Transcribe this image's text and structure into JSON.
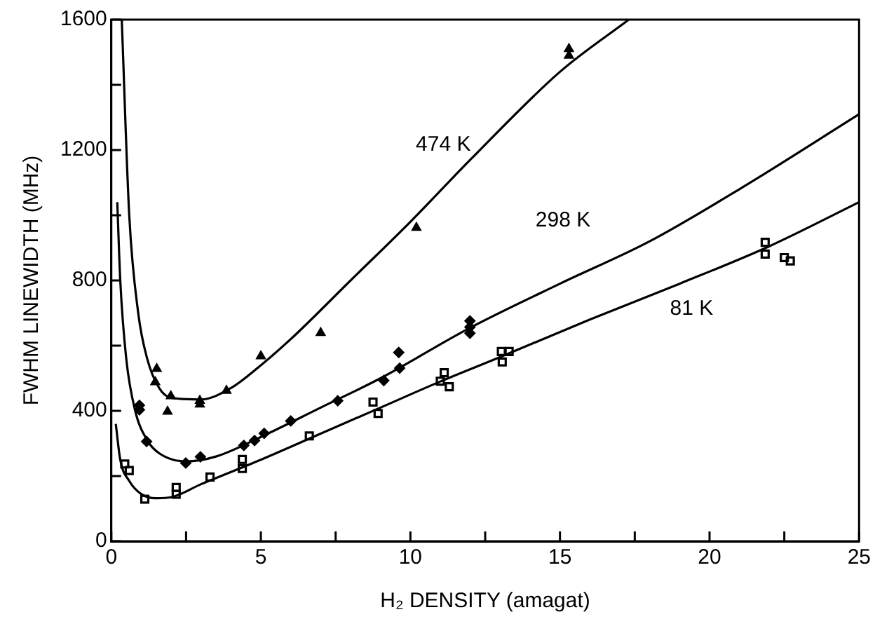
{
  "chart_data": {
    "type": "scatter",
    "xlabel": "H₂ DENSITY (amagat)",
    "ylabel": "FWHM LINEWIDTH (MHz)",
    "xlim": [
      0,
      25
    ],
    "xticks": [
      0,
      {
        "value": 2.5,
        "label": null
      },
      5,
      {
        "value": 7.5,
        "label": null
      },
      10,
      {
        "value": 12.5,
        "label": null
      },
      15,
      {
        "value": 17.5,
        "label": null
      },
      20,
      {
        "value": 22.5,
        "label": null
      },
      25
    ],
    "ylim": [
      0,
      1600
    ],
    "yticks": [
      0,
      {
        "value": 200,
        "label": null
      },
      400,
      {
        "value": 600,
        "label": null
      },
      800,
      {
        "value": 1000,
        "label": null
      },
      1200,
      {
        "value": 1400,
        "label": null
      },
      1600
    ],
    "grid": false,
    "legend": false,
    "series": [
      {
        "marker": "triangle",
        "color": "#000000",
        "x": [
          1.52,
          1.47,
          1.99,
          1.88,
          2.96,
          2.96,
          3.85,
          5.0,
          7.0,
          10.2,
          15.3,
          15.3
        ],
        "values": [
          529,
          488,
          445,
          398,
          431,
          420,
          462,
          568,
          639,
          962,
          1510,
          1490
        ]
      },
      {
        "marker": "diamond",
        "color": "#000000",
        "x": [
          0.94,
          0.94,
          1.18,
          2.49,
          2.98,
          4.43,
          4.79,
          5.11,
          6.0,
          7.57,
          9.11,
          9.61,
          9.64,
          11.99,
          11.99,
          11.99
        ],
        "values": [
          417,
          403,
          306,
          240,
          259,
          294,
          309,
          331,
          369,
          431,
          493,
          579,
          531,
          657,
          638,
          676
        ]
      },
      {
        "marker": "square",
        "color": "#000000",
        "x": [
          0.45,
          0.6,
          1.12,
          2.17,
          2.17,
          3.3,
          4.38,
          4.38,
          6.62,
          8.75,
          8.92,
          11.13,
          11.0,
          11.3,
          13.04,
          13.3,
          13.07,
          21.86,
          21.86,
          22.5,
          22.7
        ],
        "values": [
          237,
          217,
          129,
          165,
          144,
          197,
          251,
          223,
          323,
          427,
          392,
          517,
          491,
          474,
          582,
          582,
          550,
          917,
          881,
          870,
          860
        ]
      },
      {
        "type": "line",
        "name": "474 K",
        "marker": "none",
        "color": "#000000",
        "x": [
          0.35,
          0.6,
          0.9,
          1.2,
          1.6,
          2,
          3,
          4,
          5,
          6,
          8,
          10,
          12,
          15,
          17.3
        ],
        "values": [
          1600,
          1000,
          700,
          560,
          470,
          440,
          435,
          470,
          540,
          620,
          800,
          980,
          1170,
          1440,
          1600
        ]
      },
      {
        "type": "line",
        "name": "298 K",
        "marker": "none",
        "color": "#000000",
        "x": [
          0.2,
          0.3,
          0.5,
          0.8,
          1.2,
          1.6,
          2.5,
          3.5,
          5,
          7,
          9,
          12,
          15,
          18,
          21,
          25
        ],
        "values": [
          1040,
          800,
          560,
          400,
          310,
          270,
          245,
          260,
          320,
          410,
          500,
          655,
          790,
          920,
          1080,
          1310
        ]
      },
      {
        "type": "line",
        "name": "81 K",
        "marker": "none",
        "color": "#000000",
        "x": [
          0.15,
          0.3,
          0.6,
          1,
          1.5,
          2,
          3,
          5,
          7,
          9,
          11,
          13,
          16,
          19,
          22,
          25
        ],
        "values": [
          360,
          250,
          185,
          145,
          132,
          135,
          175,
          250,
          330,
          410,
          490,
          565,
          680,
          790,
          905,
          1040
        ]
      }
    ]
  }
}
